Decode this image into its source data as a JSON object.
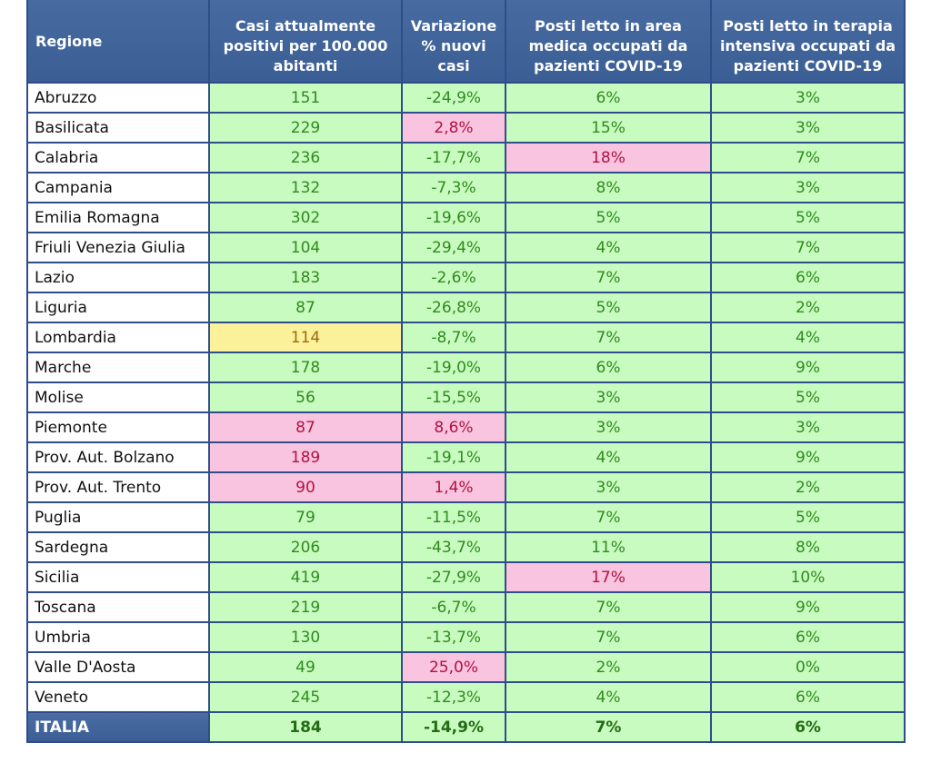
{
  "table": {
    "headers": [
      "Regione",
      "Casi attualmente positivi per 100.000 abitanti",
      "Variazione % nuovi casi",
      "Posti letto in area medica occupati da pazienti COVID-19",
      "Posti letto in terapia intensiva occupati da pazienti COVID-19"
    ],
    "rows": [
      {
        "regione": "Abruzzo",
        "casi": "151",
        "variazione": "-24,9%",
        "area_medica": "6%",
        "terapia_intensiva": "3%",
        "highlight": {}
      },
      {
        "regione": "Basilicata",
        "casi": "229",
        "variazione": "2,8%",
        "area_medica": "15%",
        "terapia_intensiva": "3%",
        "highlight": {
          "variazione": "pink"
        }
      },
      {
        "regione": "Calabria",
        "casi": "236",
        "variazione": "-17,7%",
        "area_medica": "18%",
        "terapia_intensiva": "7%",
        "highlight": {
          "area_medica": "pink"
        }
      },
      {
        "regione": "Campania",
        "casi": "132",
        "variazione": "-7,3%",
        "area_medica": "8%",
        "terapia_intensiva": "3%",
        "highlight": {}
      },
      {
        "regione": "Emilia Romagna",
        "casi": "302",
        "variazione": "-19,6%",
        "area_medica": "5%",
        "terapia_intensiva": "5%",
        "highlight": {}
      },
      {
        "regione": "Friuli Venezia Giulia",
        "casi": "104",
        "variazione": "-29,4%",
        "area_medica": "4%",
        "terapia_intensiva": "7%",
        "highlight": {}
      },
      {
        "regione": "Lazio",
        "casi": "183",
        "variazione": "-2,6%",
        "area_medica": "7%",
        "terapia_intensiva": "6%",
        "highlight": {}
      },
      {
        "regione": "Liguria",
        "casi": "87",
        "variazione": "-26,8%",
        "area_medica": "5%",
        "terapia_intensiva": "2%",
        "highlight": {}
      },
      {
        "regione": "Lombardia",
        "casi": "114",
        "variazione": "-8,7%",
        "area_medica": "7%",
        "terapia_intensiva": "4%",
        "highlight": {
          "casi": "yellow"
        }
      },
      {
        "regione": "Marche",
        "casi": "178",
        "variazione": "-19,0%",
        "area_medica": "6%",
        "terapia_intensiva": "9%",
        "highlight": {}
      },
      {
        "regione": "Molise",
        "casi": "56",
        "variazione": "-15,5%",
        "area_medica": "3%",
        "terapia_intensiva": "5%",
        "highlight": {}
      },
      {
        "regione": "Piemonte",
        "casi": "87",
        "variazione": "8,6%",
        "area_medica": "3%",
        "terapia_intensiva": "3%",
        "highlight": {
          "casi": "pink",
          "variazione": "pink"
        }
      },
      {
        "regione": "Prov. Aut. Bolzano",
        "casi": "189",
        "variazione": "-19,1%",
        "area_medica": "4%",
        "terapia_intensiva": "9%",
        "highlight": {
          "casi": "pink"
        }
      },
      {
        "regione": "Prov. Aut. Trento",
        "casi": "90",
        "variazione": "1,4%",
        "area_medica": "3%",
        "terapia_intensiva": "2%",
        "highlight": {
          "casi": "pink",
          "variazione": "pink"
        }
      },
      {
        "regione": "Puglia",
        "casi": "79",
        "variazione": "-11,5%",
        "area_medica": "7%",
        "terapia_intensiva": "5%",
        "highlight": {}
      },
      {
        "regione": "Sardegna",
        "casi": "206",
        "variazione": "-43,7%",
        "area_medica": "11%",
        "terapia_intensiva": "8%",
        "highlight": {}
      },
      {
        "regione": "Sicilia",
        "casi": "419",
        "variazione": "-27,9%",
        "area_medica": "17%",
        "terapia_intensiva": "10%",
        "highlight": {
          "area_medica": "pink"
        }
      },
      {
        "regione": "Toscana",
        "casi": "219",
        "variazione": "-6,7%",
        "area_medica": "7%",
        "terapia_intensiva": "9%",
        "highlight": {}
      },
      {
        "regione": "Umbria",
        "casi": "130",
        "variazione": "-13,7%",
        "area_medica": "7%",
        "terapia_intensiva": "6%",
        "highlight": {}
      },
      {
        "regione": "Valle D'Aosta",
        "casi": "49",
        "variazione": "25,0%",
        "area_medica": "2%",
        "terapia_intensiva": "0%",
        "highlight": {
          "variazione": "pink"
        }
      },
      {
        "regione": "Veneto",
        "casi": "245",
        "variazione": "-12,3%",
        "area_medica": "4%",
        "terapia_intensiva": "6%",
        "highlight": {}
      }
    ],
    "total": {
      "regione": "ITALIA",
      "casi": "184",
      "variazione": "-14,9%",
      "area_medica": "7%",
      "terapia_intensiva": "6%"
    }
  },
  "colors": {
    "header_bg": "#3f6399",
    "border": "#2e4d8a",
    "ok_bg": "#c8fbbf",
    "ok_text": "#2e8b1e",
    "alert_bg": "#f9c4e0",
    "alert_text": "#b3123f",
    "warn_bg": "#fbf19a",
    "warn_text": "#9a6a10"
  }
}
